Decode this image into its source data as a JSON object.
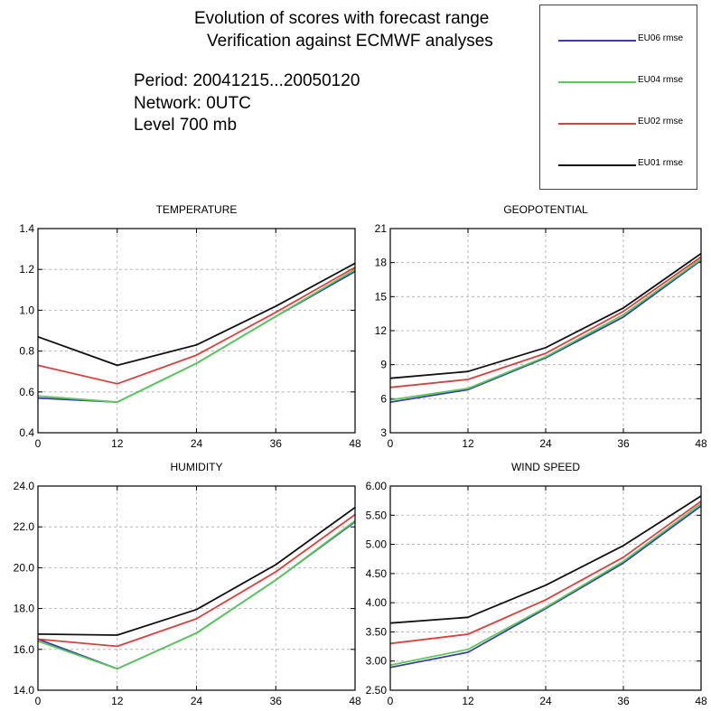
{
  "header": {
    "title_line1": "Evolution of scores with forecast range",
    "title_line2": "Verification against ECMWF analyses",
    "period": "Period: 20041215...20050120",
    "network": "Network: 0UTC",
    "level": "Level 700 mb"
  },
  "legend": [
    {
      "label": "EU06 rmse",
      "color": "#3a3fa8"
    },
    {
      "label": "EU04 rmse",
      "color": "#5cc85c"
    },
    {
      "label": "EU02 rmse",
      "color": "#d9403f"
    },
    {
      "label": "EU01 rmse",
      "color": "#111111"
    }
  ],
  "chart_data": [
    {
      "type": "line",
      "title": "TEMPERATURE",
      "x": [
        0,
        12,
        24,
        36,
        48
      ],
      "xticks": [
        "0",
        "12",
        "24",
        "36",
        "48"
      ],
      "ylim": [
        0.4,
        1.4
      ],
      "yticks": [
        "0.4",
        "0.6",
        "0.8",
        "1.0",
        "1.2",
        "1.4"
      ],
      "grid": true,
      "series": [
        {
          "name": "EU06 rmse",
          "color": "#3a3fa8",
          "values": [
            0.57,
            0.55,
            0.74,
            0.97,
            1.19
          ]
        },
        {
          "name": "EU04 rmse",
          "color": "#5cc85c",
          "values": [
            0.58,
            0.55,
            0.74,
            0.97,
            1.2
          ]
        },
        {
          "name": "EU02 rmse",
          "color": "#d9403f",
          "values": [
            0.73,
            0.64,
            0.78,
            0.99,
            1.21
          ]
        },
        {
          "name": "EU01 rmse",
          "color": "#111111",
          "values": [
            0.87,
            0.73,
            0.83,
            1.02,
            1.23
          ]
        }
      ]
    },
    {
      "type": "line",
      "title": "GEOPOTENTIAL",
      "x": [
        0,
        12,
        24,
        36,
        48
      ],
      "xticks": [
        "0",
        "12",
        "24",
        "36",
        "48"
      ],
      "ylim": [
        3,
        21
      ],
      "yticks": [
        "3",
        "6",
        "9",
        "12",
        "15",
        "18",
        "21"
      ],
      "grid": true,
      "series": [
        {
          "name": "EU06 rmse",
          "color": "#3a3fa8",
          "values": [
            5.7,
            6.8,
            9.6,
            13.2,
            18.2
          ]
        },
        {
          "name": "EU04 rmse",
          "color": "#5cc85c",
          "values": [
            5.9,
            6.9,
            9.7,
            13.4,
            18.3
          ]
        },
        {
          "name": "EU02 rmse",
          "color": "#d9403f",
          "values": [
            7.0,
            7.7,
            10.0,
            13.7,
            18.5
          ]
        },
        {
          "name": "EU01 rmse",
          "color": "#111111",
          "values": [
            7.8,
            8.4,
            10.5,
            14.0,
            18.8
          ]
        }
      ]
    },
    {
      "type": "line",
      "title": "HUMIDITY",
      "x": [
        0,
        12,
        24,
        36,
        48
      ],
      "xticks": [
        "0",
        "12",
        "24",
        "36",
        "48"
      ],
      "ylim": [
        14.0,
        24.0
      ],
      "yticks": [
        "14.0",
        "16.0",
        "18.0",
        "20.0",
        "22.0",
        "24.0"
      ],
      "grid": true,
      "series": [
        {
          "name": "EU06 rmse",
          "color": "#3a3fa8",
          "values": [
            16.5,
            15.05,
            16.8,
            19.4,
            22.25
          ]
        },
        {
          "name": "EU04 rmse",
          "color": "#5cc85c",
          "values": [
            16.4,
            15.05,
            16.8,
            19.4,
            22.3
          ]
        },
        {
          "name": "EU02 rmse",
          "color": "#d9403f",
          "values": [
            16.5,
            16.15,
            17.5,
            19.8,
            22.6
          ]
        },
        {
          "name": "EU01 rmse",
          "color": "#111111",
          "values": [
            16.75,
            16.7,
            17.95,
            20.15,
            22.95
          ]
        }
      ]
    },
    {
      "type": "line",
      "title": "WIND SPEED",
      "x": [
        0,
        12,
        24,
        36,
        48
      ],
      "xticks": [
        "0",
        "12",
        "24",
        "36",
        "48"
      ],
      "ylim": [
        2.5,
        6.0
      ],
      "yticks": [
        "2.50",
        "3.00",
        "3.50",
        "4.00",
        "4.50",
        "5.00",
        "5.50",
        "6.00"
      ],
      "grid": true,
      "series": [
        {
          "name": "EU06 rmse",
          "color": "#3a3fa8",
          "values": [
            2.89,
            3.15,
            3.9,
            4.68,
            5.66
          ]
        },
        {
          "name": "EU04 rmse",
          "color": "#5cc85c",
          "values": [
            2.93,
            3.2,
            3.92,
            4.71,
            5.7
          ]
        },
        {
          "name": "EU02 rmse",
          "color": "#d9403f",
          "values": [
            3.3,
            3.46,
            4.05,
            4.78,
            5.74
          ]
        },
        {
          "name": "EU01 rmse",
          "color": "#111111",
          "values": [
            3.65,
            3.75,
            4.3,
            4.98,
            5.83
          ]
        }
      ]
    }
  ]
}
